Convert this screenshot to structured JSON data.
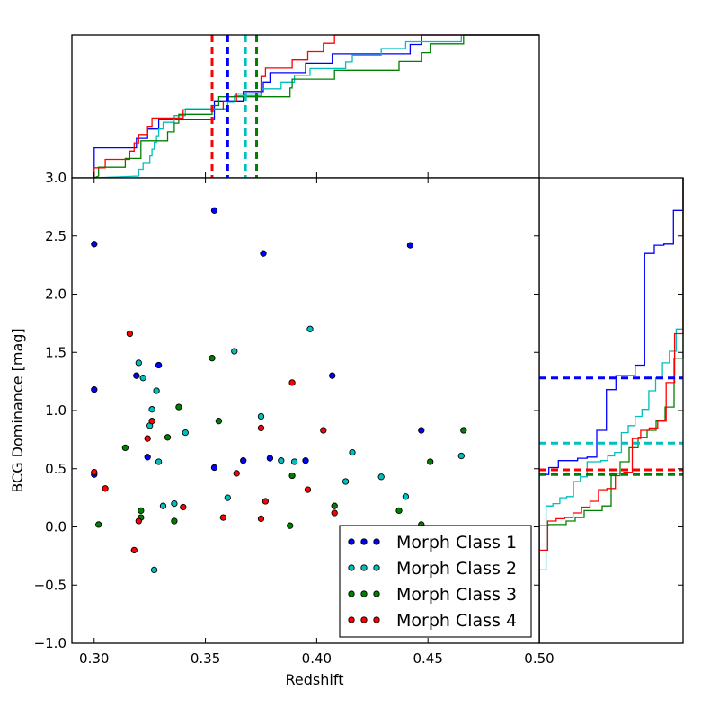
{
  "colors": {
    "class1": "#0000ff",
    "class2": "#00bfbf",
    "class3": "#008000",
    "class4": "#ff0000"
  },
  "chart_data": {
    "type": "scatter",
    "xlabel": "Redshift",
    "ylabel": "BCG Dominance [mag]",
    "xlim": [
      0.29,
      0.5
    ],
    "ylim": [
      -1.0,
      3.0
    ],
    "x_ticks": [
      "0.30",
      "0.35",
      "0.40",
      "0.45",
      "0.50"
    ],
    "y_ticks": [
      "−1.0",
      "−0.5",
      "0.0",
      "0.5",
      "1.0",
      "1.5",
      "2.0",
      "2.5",
      "3.0"
    ],
    "grid": false,
    "legend_position": "lower-right",
    "series": [
      {
        "name": "Morph Class 1",
        "color": "#0000ff",
        "points": [
          [
            0.3,
            2.43
          ],
          [
            0.3,
            1.18
          ],
          [
            0.3,
            0.45
          ],
          [
            0.319,
            1.3
          ],
          [
            0.329,
            1.39
          ],
          [
            0.324,
            0.6
          ],
          [
            0.354,
            2.72
          ],
          [
            0.354,
            0.51
          ],
          [
            0.367,
            0.57
          ],
          [
            0.376,
            2.35
          ],
          [
            0.379,
            0.59
          ],
          [
            0.395,
            0.57
          ],
          [
            0.407,
            1.3
          ],
          [
            0.442,
            2.42
          ],
          [
            0.447,
            0.83
          ]
        ],
        "median": 0.36,
        "median_y": 1.28
      },
      {
        "name": "Morph Class 2",
        "color": "#00bfbf",
        "points": [
          [
            0.32,
            1.41
          ],
          [
            0.322,
            1.28
          ],
          [
            0.325,
            0.87
          ],
          [
            0.326,
            1.01
          ],
          [
            0.328,
            1.17
          ],
          [
            0.329,
            0.56
          ],
          [
            0.331,
            0.18
          ],
          [
            0.327,
            -0.37
          ],
          [
            0.336,
            0.2
          ],
          [
            0.341,
            0.81
          ],
          [
            0.36,
            0.25
          ],
          [
            0.363,
            1.51
          ],
          [
            0.375,
            0.95
          ],
          [
            0.384,
            0.57
          ],
          [
            0.39,
            0.56
          ],
          [
            0.397,
            1.7
          ],
          [
            0.413,
            0.39
          ],
          [
            0.416,
            0.64
          ],
          [
            0.429,
            0.43
          ],
          [
            0.44,
            0.26
          ],
          [
            0.465,
            0.61
          ]
        ],
        "median": 0.368,
        "median_y": 0.72
      },
      {
        "name": "Morph Class 3",
        "color": "#008000",
        "points": [
          [
            0.302,
            0.02
          ],
          [
            0.314,
            0.68
          ],
          [
            0.321,
            0.14
          ],
          [
            0.321,
            0.08
          ],
          [
            0.333,
            0.77
          ],
          [
            0.336,
            0.05
          ],
          [
            0.338,
            1.03
          ],
          [
            0.353,
            1.45
          ],
          [
            0.356,
            0.91
          ],
          [
            0.388,
            0.01
          ],
          [
            0.389,
            0.44
          ],
          [
            0.408,
            0.18
          ],
          [
            0.437,
            0.14
          ],
          [
            0.447,
            0.02
          ],
          [
            0.451,
            0.56
          ],
          [
            0.466,
            0.83
          ]
        ],
        "median": 0.373,
        "median_y": 0.45
      },
      {
        "name": "Morph Class 4",
        "color": "#ff0000",
        "points": [
          [
            0.3,
            0.47
          ],
          [
            0.305,
            0.33
          ],
          [
            0.316,
            1.66
          ],
          [
            0.318,
            -0.2
          ],
          [
            0.32,
            0.05
          ],
          [
            0.324,
            0.76
          ],
          [
            0.326,
            0.91
          ],
          [
            0.34,
            0.17
          ],
          [
            0.358,
            0.08
          ],
          [
            0.364,
            0.46
          ],
          [
            0.375,
            0.07
          ],
          [
            0.375,
            0.85
          ],
          [
            0.377,
            0.22
          ],
          [
            0.389,
            1.24
          ],
          [
            0.396,
            0.32
          ],
          [
            0.403,
            0.83
          ],
          [
            0.408,
            0.12
          ]
        ],
        "median": 0.353,
        "median_y": 0.49
      }
    ]
  }
}
